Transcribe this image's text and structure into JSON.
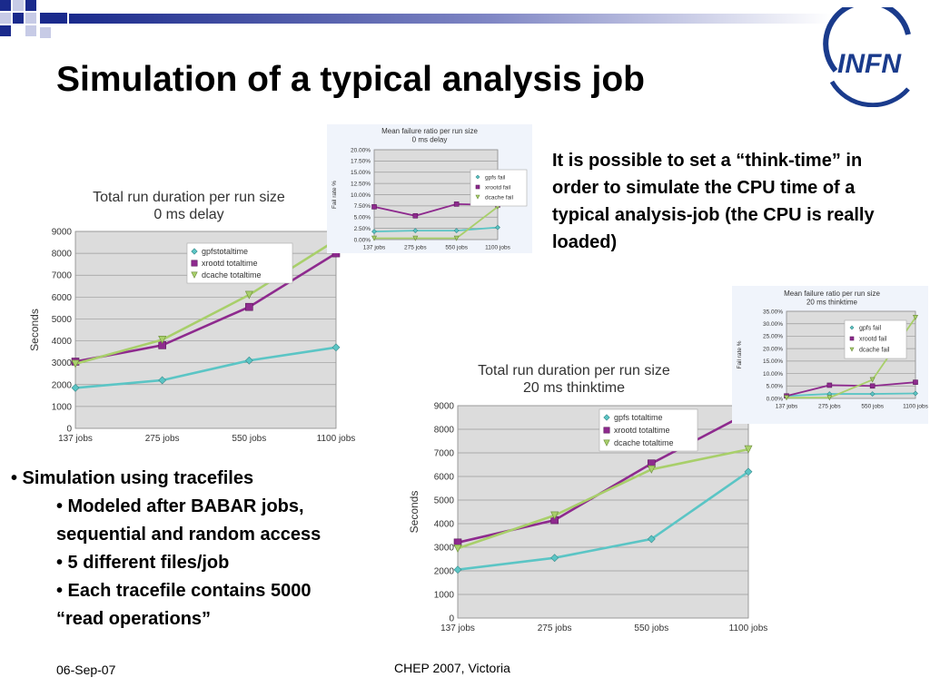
{
  "slide": {
    "title": "Simulation of a typical analysis job",
    "think_note": "It is possible to set a “think-time” in order to simulate the CPU time of a typical analysis-job (the CPU is really loaded)",
    "bullets": [
      {
        "level": 1,
        "text": "• Simulation using tracefiles"
      },
      {
        "level": 2,
        "text": "• Modeled after BABAR jobs, sequential and random access"
      },
      {
        "level": 2,
        "text": "• 5 different files/job"
      },
      {
        "level": 2,
        "text": "• Each tracefile contains 5000 “read operations”"
      }
    ],
    "footer_date": "06-Sep-07",
    "footer_conference": "CHEP 2007, Victoria",
    "logo_text": "INFN",
    "colors": {
      "blue": "#1a3b8c",
      "gpfs": "#5bc5c5",
      "xrootd": "#8e2a8e",
      "dcache": "#a8cf6a"
    }
  },
  "chart_data": [
    {
      "type": "line",
      "title": "Total run duration per run size",
      "subtitle": "0 ms delay",
      "ylabel": "Seconds",
      "xlabel": "",
      "categories": [
        "137 jobs",
        "275 jobs",
        "550 jobs",
        "1100 jobs"
      ],
      "ylim": [
        0,
        9000
      ],
      "yticks": [
        "0",
        "1000",
        "2000",
        "3000",
        "4000",
        "5000",
        "6000",
        "7000",
        "8000",
        "9000"
      ],
      "legend_position": "top-center",
      "grid": true,
      "series": [
        {
          "name": "gpfstotaltime",
          "values": [
            1850,
            2200,
            3100,
            3700
          ]
        },
        {
          "name": "xrootd totaltime",
          "values": [
            3050,
            3800,
            5550,
            8000
          ]
        },
        {
          "name": "dcache totaltime",
          "values": [
            2950,
            4050,
            6100,
            8600
          ]
        }
      ]
    },
    {
      "type": "line",
      "title": "Mean failure ratio per run size",
      "subtitle": "0 ms delay",
      "ylabel": "Fail rate %",
      "xlabel": "",
      "categories": [
        "137 jobs",
        "275 jobs",
        "550 jobs",
        "1100 jobs"
      ],
      "ylim": [
        0,
        20
      ],
      "yticks": [
        "0.00%",
        "2.50%",
        "5.00%",
        "7.50%",
        "10.00%",
        "12.50%",
        "15.00%",
        "17.50%",
        "20.00%"
      ],
      "legend_position": "right",
      "grid": true,
      "series": [
        {
          "name": "gpfs fail",
          "values": [
            1.8,
            2.0,
            2.0,
            2.7
          ]
        },
        {
          "name": "xrootd fail",
          "values": [
            7.3,
            5.3,
            7.9,
            7.7
          ]
        },
        {
          "name": "dcache fail",
          "values": [
            0.3,
            0.3,
            0.3,
            7.3
          ]
        }
      ]
    },
    {
      "type": "line",
      "title": "Total run duration per run size",
      "subtitle": "20 ms thinktime",
      "ylabel": "Seconds",
      "xlabel": "",
      "categories": [
        "137 jobs",
        "275 jobs",
        "550 jobs",
        "1100 jobs"
      ],
      "ylim": [
        0,
        9000
      ],
      "yticks": [
        "0",
        "1000",
        "2000",
        "3000",
        "4000",
        "5000",
        "6000",
        "7000",
        "8000",
        "9000"
      ],
      "legend_position": "top-center",
      "grid": true,
      "series": [
        {
          "name": "gpfs totaltime",
          "values": [
            2050,
            2550,
            3350,
            6200
          ]
        },
        {
          "name": "xrootd totaltime",
          "values": [
            3200,
            4150,
            6550,
            8700
          ]
        },
        {
          "name": "dcache totaltime",
          "values": [
            2950,
            4350,
            6300,
            7150
          ]
        }
      ]
    },
    {
      "type": "line",
      "title": "Mean failure ratio per run size",
      "subtitle": "20 ms thinktime",
      "ylabel": "Fail rate %",
      "xlabel": "",
      "categories": [
        "137 jobs",
        "275 jobs",
        "550 jobs",
        "1100 jobs"
      ],
      "ylim": [
        0,
        35
      ],
      "yticks": [
        "0.00%",
        "5.00%",
        "10.00%",
        "15.00%",
        "20.00%",
        "25.00%",
        "30.00%",
        "35.00%"
      ],
      "legend_position": "right",
      "grid": true,
      "series": [
        {
          "name": "gpfs fail",
          "values": [
            1.0,
            1.8,
            1.8,
            2.0
          ]
        },
        {
          "name": "xrootd fail",
          "values": [
            1.0,
            5.3,
            5.0,
            6.5
          ]
        },
        {
          "name": "dcache fail",
          "values": [
            0.3,
            0.3,
            7.5,
            32.5
          ]
        }
      ]
    }
  ]
}
